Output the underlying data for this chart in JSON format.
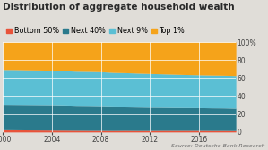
{
  "title": "Distribution of aggregate household wealth",
  "legend_labels": [
    "Bottom 50%",
    "Next 40%",
    "Next 9%",
    "Top 1%"
  ],
  "colors": [
    "#e8533a",
    "#2a7a8c",
    "#5bbfd4",
    "#f5a31a"
  ],
  "source": "Source: Deutsche Bank Research",
  "years": [
    2000,
    2001,
    2002,
    2003,
    2004,
    2005,
    2006,
    2007,
    2008,
    2009,
    2010,
    2011,
    2012,
    2013,
    2014,
    2015,
    2016,
    2017,
    2018,
    2019
  ],
  "bottom50": [
    2.5,
    2.4,
    2.3,
    2.2,
    2.1,
    2.0,
    1.9,
    1.8,
    1.8,
    1.7,
    1.8,
    1.7,
    1.7,
    1.8,
    1.8,
    1.8,
    1.8,
    1.7,
    1.7,
    1.6
  ],
  "next40": [
    27.5,
    27.5,
    27.5,
    27.5,
    27.5,
    27.3,
    27.0,
    27.0,
    26.8,
    26.5,
    26.3,
    26.2,
    26.0,
    25.8,
    25.6,
    25.5,
    25.4,
    25.3,
    25.2,
    25.0
  ],
  "next9": [
    39.5,
    39.5,
    39.3,
    39.2,
    39.0,
    38.8,
    38.6,
    38.5,
    38.4,
    38.0,
    37.8,
    37.5,
    37.3,
    37.0,
    36.8,
    36.5,
    36.3,
    36.2,
    36.1,
    36.0
  ],
  "top1": [
    30.5,
    30.6,
    30.9,
    31.1,
    31.4,
    31.9,
    32.5,
    32.7,
    33.0,
    33.8,
    34.1,
    34.6,
    35.0,
    35.4,
    35.8,
    36.2,
    36.5,
    36.8,
    37.0,
    37.4
  ],
  "ylim": [
    0,
    100
  ],
  "yticks": [
    0,
    20,
    40,
    60,
    80,
    100
  ],
  "xlim": [
    2000,
    2019
  ],
  "xticks": [
    2000,
    2004,
    2008,
    2012,
    2016
  ],
  "bg_color": "#e0ddd8",
  "grid_color": "#ffffff",
  "title_fontsize": 7.5,
  "legend_fontsize": 5.8,
  "tick_fontsize": 5.5,
  "source_fontsize": 4.5
}
